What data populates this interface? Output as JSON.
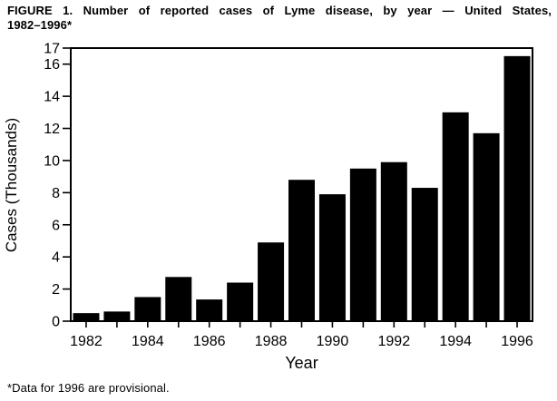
{
  "figure": {
    "title_line1": "FIGURE 1. Number of reported cases of Lyme disease, by year — United States,",
    "title_line2": "1982–1996*",
    "footnote": "*Data for 1996 are provisional."
  },
  "chart_data": {
    "type": "bar",
    "title": "FIGURE 1. Number of reported cases of Lyme disease, by year — United States, 1982–1996*",
    "xlabel": "Year",
    "ylabel": "Cases (Thousands)",
    "categories": [
      1982,
      1983,
      1984,
      1985,
      1986,
      1987,
      1988,
      1989,
      1990,
      1991,
      1992,
      1993,
      1994,
      1995,
      1996
    ],
    "values": [
      0.5,
      0.6,
      1.5,
      2.75,
      1.35,
      2.4,
      4.9,
      8.8,
      7.9,
      9.5,
      9.9,
      8.3,
      13.0,
      11.7,
      16.5
    ],
    "ylim": [
      0,
      17
    ],
    "yticks": [
      0,
      2,
      4,
      6,
      8,
      10,
      12,
      14,
      16,
      17
    ],
    "xticks_labeled": [
      1982,
      1984,
      1986,
      1988,
      1990,
      1992,
      1994,
      1996
    ],
    "bar_color": "#000000",
    "axis_color": "#000000",
    "background": "#ffffff",
    "grid": false,
    "legend": false,
    "plot_border": "full-box",
    "footnote": "*Data for 1996 are provisional."
  }
}
